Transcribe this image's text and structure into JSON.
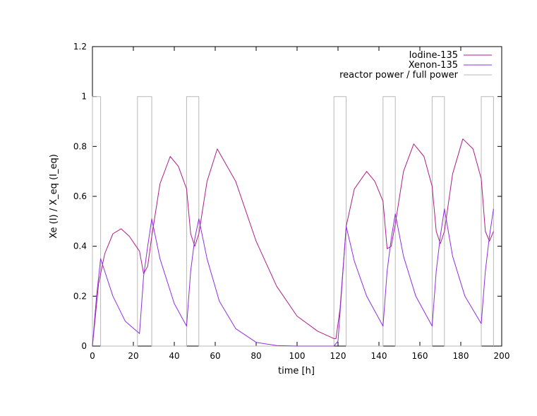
{
  "chart_data": {
    "type": "line",
    "title": "",
    "xlabel": "time [h]",
    "ylabel": "Xe (I) / X_eq (I_eq)",
    "xlim": [
      0,
      200
    ],
    "ylim": [
      0,
      1.2
    ],
    "xticks": [
      "0",
      "20",
      "40",
      "60",
      "80",
      "100",
      "120",
      "140",
      "160",
      "180",
      "200"
    ],
    "yticks": [
      "0",
      "0.2",
      "0.4",
      "0.6",
      "0.8",
      "1",
      "1.2"
    ],
    "grid": false,
    "legend_position": "top-right",
    "series": [
      {
        "name": "Iodine-135",
        "color": "#ad1f86",
        "x": [
          0,
          3,
          6,
          10,
          14,
          18,
          23,
          25,
          27,
          29,
          33,
          38,
          42,
          46,
          48,
          50,
          52,
          56,
          61,
          70,
          80,
          90,
          100,
          110,
          118,
          119,
          121,
          124,
          128,
          134,
          138,
          142,
          144,
          146,
          148,
          152,
          157,
          162,
          166,
          168,
          170,
          172,
          176,
          181,
          186,
          190,
          192,
          194,
          196
        ],
        "y": [
          0,
          0.25,
          0.37,
          0.45,
          0.47,
          0.44,
          0.38,
          0.29,
          0.32,
          0.44,
          0.65,
          0.76,
          0.72,
          0.63,
          0.45,
          0.4,
          0.45,
          0.66,
          0.79,
          0.66,
          0.42,
          0.24,
          0.12,
          0.06,
          0.03,
          0.03,
          0.15,
          0.48,
          0.63,
          0.7,
          0.66,
          0.58,
          0.39,
          0.4,
          0.49,
          0.7,
          0.81,
          0.76,
          0.64,
          0.46,
          0.41,
          0.46,
          0.69,
          0.83,
          0.79,
          0.67,
          0.46,
          0.42,
          0.46
        ]
      },
      {
        "name": "Xenon-135",
        "color": "#8f2fe0",
        "x": [
          0,
          2,
          4,
          6,
          10,
          16,
          23,
          25,
          27,
          29,
          33,
          40,
          46,
          48,
          50,
          52,
          56,
          62,
          70,
          80,
          90,
          100,
          110,
          118,
          120,
          122,
          124,
          128,
          134,
          142,
          144,
          146,
          148,
          152,
          158,
          166,
          168,
          170,
          172,
          176,
          182,
          190,
          192,
          194,
          196
        ],
        "y": [
          0,
          0.2,
          0.35,
          0.3,
          0.2,
          0.1,
          0.05,
          0.28,
          0.4,
          0.51,
          0.35,
          0.17,
          0.08,
          0.3,
          0.43,
          0.51,
          0.35,
          0.18,
          0.07,
          0.015,
          0.002,
          0,
          0,
          0,
          0.02,
          0.25,
          0.48,
          0.34,
          0.2,
          0.08,
          0.3,
          0.43,
          0.53,
          0.36,
          0.2,
          0.08,
          0.3,
          0.44,
          0.55,
          0.36,
          0.2,
          0.09,
          0.3,
          0.44,
          0.55
        ]
      },
      {
        "name": "reactor power / full power",
        "color": "#b8b8b8",
        "x": [
          0,
          0,
          4,
          4,
          22,
          22,
          29,
          29,
          46,
          46,
          52,
          52,
          118,
          118,
          124,
          124,
          142,
          142,
          148,
          148,
          166,
          166,
          172,
          172,
          190,
          190,
          196,
          196
        ],
        "y": [
          0,
          1,
          1,
          0,
          0,
          1,
          1,
          0,
          0,
          1,
          1,
          0,
          0,
          1,
          1,
          0,
          0,
          1,
          1,
          0,
          0,
          1,
          1,
          0,
          0,
          1,
          1,
          0
        ]
      }
    ]
  }
}
